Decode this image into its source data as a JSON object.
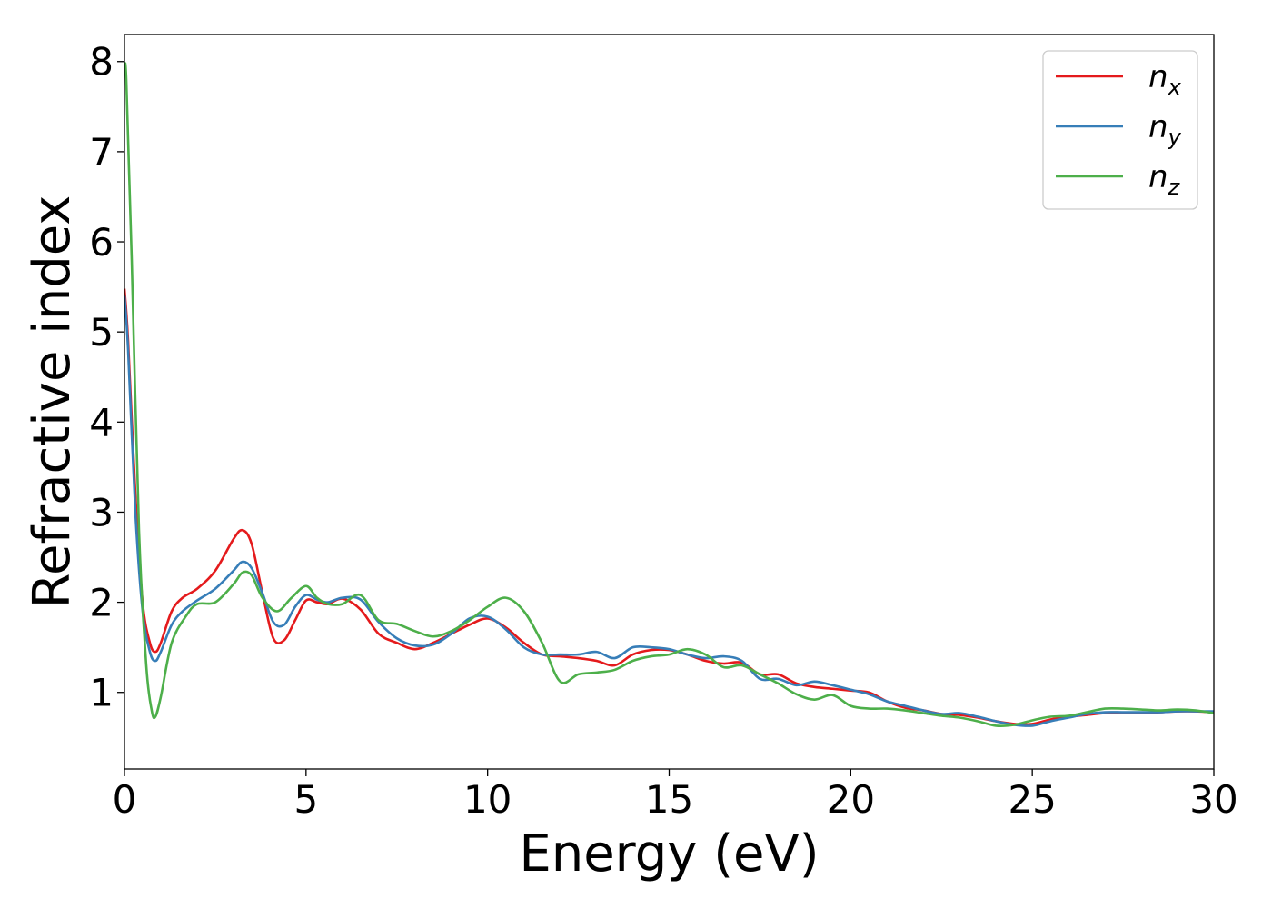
{
  "chart_data": {
    "type": "line",
    "xlabel": "Energy (eV)",
    "ylabel": "Refractive index",
    "xlim": [
      0,
      30
    ],
    "ylim": [
      0.15,
      8.3
    ],
    "xticks": [
      0,
      5,
      10,
      15,
      20,
      25,
      30
    ],
    "yticks": [
      1,
      2,
      3,
      4,
      5,
      6,
      7,
      8
    ],
    "grid": false,
    "legend_position": "top-right",
    "series": [
      {
        "name": "n_x",
        "label_base": "n",
        "label_sub": "x",
        "color": "#e41a1c",
        "x": [
          0,
          0.1,
          0.3,
          0.5,
          0.7,
          0.85,
          1.0,
          1.3,
          1.6,
          2.0,
          2.5,
          3.0,
          3.25,
          3.5,
          3.8,
          4.1,
          4.4,
          4.7,
          5.0,
          5.3,
          5.6,
          6.0,
          6.5,
          7.0,
          7.5,
          8.0,
          8.5,
          9.0,
          9.5,
          10.0,
          10.5,
          11.0,
          11.5,
          12.0,
          12.5,
          13.0,
          13.5,
          14.0,
          14.5,
          15.0,
          15.5,
          16.0,
          16.5,
          17.0,
          17.5,
          18.0,
          18.5,
          19.0,
          19.5,
          20.0,
          20.5,
          21.0,
          21.5,
          22.0,
          22.5,
          23.0,
          23.5,
          24.0,
          24.5,
          25.0,
          25.5,
          26.0,
          26.5,
          27.0,
          27.5,
          28.0,
          28.5,
          29.0,
          29.5,
          30.0
        ],
        "y": [
          5.48,
          4.9,
          3.2,
          2.0,
          1.55,
          1.45,
          1.55,
          1.9,
          2.05,
          2.15,
          2.35,
          2.7,
          2.8,
          2.65,
          2.1,
          1.6,
          1.58,
          1.8,
          2.02,
          2.0,
          1.98,
          2.04,
          1.92,
          1.65,
          1.55,
          1.48,
          1.55,
          1.65,
          1.75,
          1.82,
          1.72,
          1.55,
          1.42,
          1.4,
          1.38,
          1.35,
          1.3,
          1.42,
          1.47,
          1.47,
          1.42,
          1.35,
          1.32,
          1.33,
          1.2,
          1.2,
          1.1,
          1.06,
          1.04,
          1.02,
          1.0,
          0.9,
          0.83,
          0.8,
          0.76,
          0.75,
          0.72,
          0.68,
          0.65,
          0.65,
          0.7,
          0.73,
          0.75,
          0.77,
          0.77,
          0.77,
          0.78,
          0.79,
          0.79,
          0.78
        ]
      },
      {
        "name": "n_y",
        "label_base": "n",
        "label_sub": "y",
        "color": "#377eb8",
        "x": [
          0,
          0.1,
          0.3,
          0.5,
          0.7,
          0.85,
          1.0,
          1.3,
          1.6,
          2.0,
          2.5,
          3.0,
          3.25,
          3.5,
          3.8,
          4.1,
          4.4,
          4.7,
          5.0,
          5.3,
          5.6,
          6.0,
          6.5,
          7.0,
          7.5,
          8.0,
          8.5,
          9.0,
          9.5,
          10.0,
          10.5,
          11.0,
          11.5,
          12.0,
          12.5,
          13.0,
          13.5,
          14.0,
          14.5,
          15.0,
          15.5,
          16.0,
          16.5,
          17.0,
          17.5,
          18.0,
          18.5,
          19.0,
          19.5,
          20.0,
          20.5,
          21.0,
          21.5,
          22.0,
          22.5,
          23.0,
          23.5,
          24.0,
          24.5,
          25.0,
          25.5,
          26.0,
          26.5,
          27.0,
          27.5,
          28.0,
          28.5,
          29.0,
          29.5,
          30.0
        ],
        "y": [
          5.4,
          4.8,
          3.0,
          1.9,
          1.45,
          1.35,
          1.45,
          1.75,
          1.9,
          2.02,
          2.15,
          2.35,
          2.45,
          2.38,
          2.1,
          1.78,
          1.75,
          1.95,
          2.08,
          2.03,
          2.0,
          2.05,
          2.03,
          1.78,
          1.6,
          1.52,
          1.53,
          1.65,
          1.82,
          1.84,
          1.7,
          1.5,
          1.42,
          1.42,
          1.42,
          1.45,
          1.38,
          1.5,
          1.5,
          1.48,
          1.42,
          1.38,
          1.4,
          1.35,
          1.15,
          1.15,
          1.08,
          1.12,
          1.08,
          1.03,
          0.98,
          0.9,
          0.85,
          0.8,
          0.76,
          0.77,
          0.73,
          0.68,
          0.64,
          0.63,
          0.68,
          0.72,
          0.76,
          0.78,
          0.78,
          0.78,
          0.78,
          0.79,
          0.79,
          0.79
        ]
      },
      {
        "name": "n_z",
        "label_base": "n",
        "label_sub": "z",
        "color": "#4daf4a",
        "x": [
          0,
          0.05,
          0.2,
          0.4,
          0.6,
          0.75,
          0.85,
          1.0,
          1.3,
          1.7,
          2.0,
          2.5,
          3.0,
          3.25,
          3.5,
          3.8,
          4.2,
          4.6,
          5.0,
          5.3,
          5.6,
          6.0,
          6.5,
          7.0,
          7.5,
          8.0,
          8.5,
          9.0,
          9.5,
          10.0,
          10.5,
          11.0,
          11.5,
          12.0,
          12.5,
          13.0,
          13.5,
          14.0,
          14.5,
          15.0,
          15.5,
          16.0,
          16.5,
          17.0,
          17.5,
          18.0,
          18.5,
          19.0,
          19.5,
          20.0,
          20.5,
          21.0,
          21.5,
          22.0,
          22.5,
          23.0,
          23.5,
          24.0,
          24.5,
          25.0,
          25.5,
          26.0,
          26.5,
          27.0,
          27.5,
          28.0,
          28.5,
          29.0,
          29.5,
          30.0
        ],
        "y": [
          7.9,
          7.8,
          5.8,
          2.8,
          1.3,
          0.8,
          0.73,
          0.95,
          1.55,
          1.85,
          1.98,
          2.0,
          2.2,
          2.33,
          2.3,
          2.05,
          1.9,
          2.05,
          2.18,
          2.05,
          1.98,
          1.98,
          2.08,
          1.8,
          1.76,
          1.68,
          1.62,
          1.68,
          1.8,
          1.95,
          2.05,
          1.9,
          1.55,
          1.12,
          1.2,
          1.22,
          1.25,
          1.35,
          1.4,
          1.42,
          1.48,
          1.42,
          1.28,
          1.3,
          1.2,
          1.1,
          0.98,
          0.92,
          0.97,
          0.85,
          0.82,
          0.82,
          0.8,
          0.77,
          0.74,
          0.72,
          0.68,
          0.63,
          0.64,
          0.69,
          0.73,
          0.74,
          0.78,
          0.82,
          0.82,
          0.81,
          0.8,
          0.81,
          0.8,
          0.77
        ]
      }
    ]
  }
}
